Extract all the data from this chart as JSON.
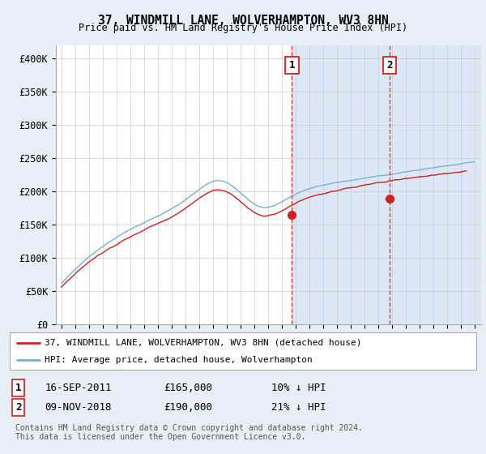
{
  "title": "37, WINDMILL LANE, WOLVERHAMPTON, WV3 8HN",
  "subtitle": "Price paid vs. HM Land Registry's House Price Index (HPI)",
  "ylim": [
    0,
    420000
  ],
  "yticks": [
    0,
    50000,
    100000,
    150000,
    200000,
    250000,
    300000,
    350000,
    400000
  ],
  "ytick_labels": [
    "£0",
    "£50K",
    "£100K",
    "£150K",
    "£200K",
    "£250K",
    "£300K",
    "£350K",
    "£400K"
  ],
  "hpi_color": "#7bafd4",
  "price_color": "#cc2222",
  "background_color": "#e8eef5",
  "plot_bg_color": "#ffffff",
  "grid_color": "#cccccc",
  "legend_line1": "37, WINDMILL LANE, WOLVERHAMPTON, WV3 8HN (detached house)",
  "legend_line2": "HPI: Average price, detached house, Wolverhampton",
  "transaction1_date": "16-SEP-2011",
  "transaction1_price": "£165,000",
  "transaction1_info": "10% ↓ HPI",
  "transaction2_date": "09-NOV-2018",
  "transaction2_price": "£190,000",
  "transaction2_info": "21% ↓ HPI",
  "footer": "Contains HM Land Registry data © Crown copyright and database right 2024.\nThis data is licensed under the Open Government Licence v3.0.",
  "vline1_x": 2011.75,
  "vline2_x": 2018.85,
  "marker1_x": 2011.75,
  "marker1_y": 165000,
  "marker2_x": 2018.85,
  "marker2_y": 190000,
  "span_color": "#dce8f5",
  "xlim_left": 1994.6,
  "xlim_right": 2025.5
}
